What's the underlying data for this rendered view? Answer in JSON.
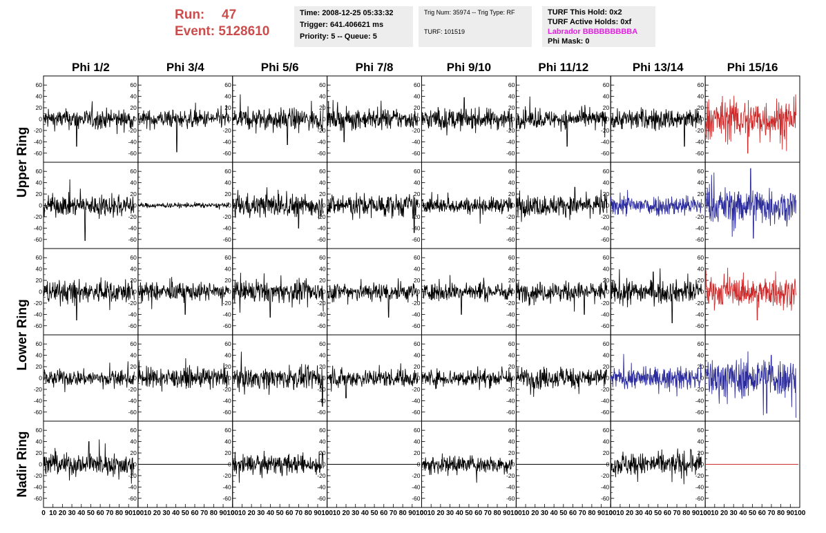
{
  "header": {
    "run_label": "Run:",
    "run_value": "47",
    "event_label": "Event:",
    "event_value": "5128610",
    "time": "Time: 2008-12-25 05:33:32",
    "trigger": "Trigger: 641.406621 ms",
    "priority": "Priority: 5 -- Queue: 5",
    "trig_num": "Trig Num: 35974 -- Trig Type: RF",
    "turf": "TURF: 101519",
    "turf_this_hold": "TURF This Hold: 0x2",
    "turf_active_holds": "TURF Active Holds: 0xf",
    "labrador": "Labrador BBBBBBBBBA",
    "phi_mask": "Phi Mask: 0"
  },
  "colors": {
    "run_text": "#cc4c4c",
    "labrador_text": "#e020e0",
    "trace_black": "#000000",
    "trace_red": "#cc2a2a",
    "trace_blue": "#2b2b9c",
    "info_bg": "#ededed"
  },
  "chart_data": {
    "type": "line",
    "columns": [
      "Phi 1/2",
      "Phi 3/4",
      "Phi 5/6",
      "Phi 7/8",
      "Phi 9/10",
      "Phi 11/12",
      "Phi 13/14",
      "Phi 15/16"
    ],
    "row_groups": [
      {
        "label": "Upper Ring",
        "rows": [
          0,
          1
        ]
      },
      {
        "label": "Lower Ring",
        "rows": [
          2,
          3
        ]
      },
      {
        "label": "Nadir Ring",
        "rows": [
          4
        ]
      }
    ],
    "xlim": [
      0,
      100
    ],
    "ylim": [
      -70,
      70
    ],
    "x_ticks": [
      "0",
      "10",
      "20",
      "30",
      "40",
      "50",
      "60",
      "70",
      "80",
      "90",
      "100"
    ],
    "y_ticks": [
      -60,
      -40,
      -20,
      0,
      20,
      40,
      60
    ],
    "samples": 260,
    "x_end": 96,
    "panels": [
      [
        {
          "amp": 12,
          "color": "black",
          "spikes": [
            [
              35,
              -48
            ]
          ]
        },
        {
          "amp": 11,
          "color": "black",
          "spikes": [
            [
              41,
              -58
            ]
          ]
        },
        {
          "amp": 13,
          "color": "black",
          "spikes": [
            [
              58,
              -45
            ]
          ]
        },
        {
          "amp": 12,
          "color": "black",
          "spikes": [
            [
              18,
              -40
            ]
          ]
        },
        {
          "amp": 13,
          "color": "black",
          "spikes": [
            [
              45,
              38
            ]
          ]
        },
        {
          "amp": 11,
          "color": "black",
          "spikes": [
            [
              54,
              -48
            ]
          ]
        },
        {
          "amp": 13,
          "color": "black",
          "spikes": [
            [
              78,
              -48
            ]
          ]
        },
        {
          "amp": 26,
          "color": "red",
          "spikes": [
            [
              45,
              -60
            ]
          ]
        }
      ],
      [
        {
          "amp": 13,
          "color": "black",
          "spikes": [
            [
              44,
              -62
            ]
          ]
        },
        {
          "amp": 3,
          "color": "black",
          "spikes": []
        },
        {
          "amp": 14,
          "color": "black",
          "spikes": [
            [
              70,
              -40
            ]
          ]
        },
        {
          "amp": 14,
          "color": "black",
          "spikes": [
            [
              92,
              -48
            ]
          ]
        },
        {
          "amp": 10,
          "color": "black",
          "spikes": []
        },
        {
          "amp": 13,
          "color": "black",
          "spikes": [
            [
              62,
              32
            ]
          ]
        },
        {
          "amp": 13,
          "color": "blue",
          "spikes": []
        },
        {
          "amp": 22,
          "color": "blue",
          "spikes": [
            [
              48,
              65
            ],
            [
              51,
              -58
            ]
          ]
        }
      ],
      [
        {
          "amp": 14,
          "color": "black",
          "spikes": [
            [
              35,
              -50
            ]
          ]
        },
        {
          "amp": 11,
          "color": "black",
          "spikes": [
            [
              50,
              -40
            ]
          ]
        },
        {
          "amp": 13,
          "color": "black",
          "spikes": [
            [
              40,
              -45
            ]
          ]
        },
        {
          "amp": 12,
          "color": "black",
          "spikes": [
            [
              65,
              -45
            ]
          ]
        },
        {
          "amp": 11,
          "color": "black",
          "spikes": [
            [
              42,
              -40
            ]
          ]
        },
        {
          "amp": 12,
          "color": "black",
          "spikes": [
            [
              72,
              -40
            ]
          ]
        },
        {
          "amp": 14,
          "color": "black",
          "spikes": [
            [
              45,
              35
            ],
            [
              65,
              -55
            ]
          ]
        },
        {
          "amp": 18,
          "color": "red",
          "spikes": [
            [
              55,
              -50
            ]
          ]
        }
      ],
      [
        {
          "amp": 10,
          "color": "black",
          "spikes": []
        },
        {
          "amp": 12,
          "color": "black",
          "spikes": []
        },
        {
          "amp": 13,
          "color": "black",
          "spikes": [
            [
              95,
              -50
            ]
          ]
        },
        {
          "amp": 11,
          "color": "black",
          "spikes": [
            [
              20,
              -35
            ]
          ]
        },
        {
          "amp": 11,
          "color": "black",
          "spikes": []
        },
        {
          "amp": 13,
          "color": "black",
          "spikes": []
        },
        {
          "amp": 13,
          "color": "blue",
          "spikes": []
        },
        {
          "amp": 25,
          "color": "blue",
          "spikes": [
            [
              65,
              -62
            ],
            [
              70,
              40
            ]
          ]
        }
      ],
      [
        {
          "amp": 14,
          "color": "black",
          "spikes": [
            [
              48,
              40
            ]
          ]
        },
        {
          "amp": 0,
          "color": "black",
          "spikes": []
        },
        {
          "amp": 12,
          "color": "black",
          "spikes": [
            [
              95,
              20
            ]
          ]
        },
        {
          "amp": 0,
          "color": "black",
          "spikes": []
        },
        {
          "amp": 11,
          "color": "black",
          "spikes": []
        },
        {
          "amp": 0,
          "color": "black",
          "spikes": []
        },
        {
          "amp": 14,
          "color": "black",
          "spikes": [
            [
              85,
              25
            ]
          ]
        },
        {
          "amp": 0,
          "color": "red",
          "spikes": []
        }
      ]
    ]
  }
}
